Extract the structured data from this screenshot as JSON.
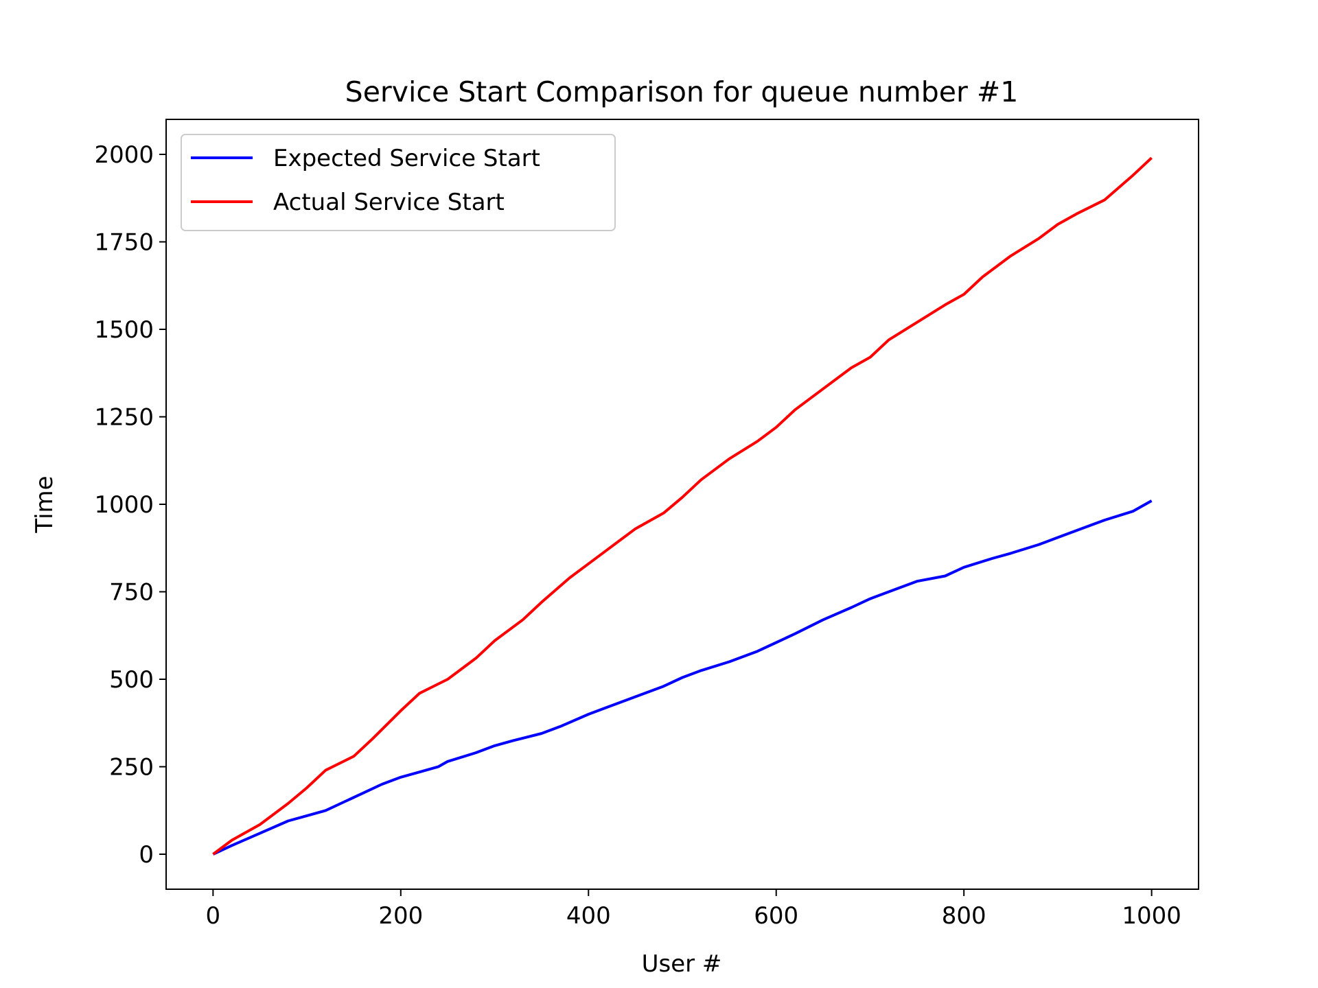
{
  "chart_data": {
    "type": "line",
    "title": "Service Start Comparison for queue number #1",
    "xlabel": "User #",
    "ylabel": "Time",
    "xlim": [
      -50,
      1050
    ],
    "ylim": [
      -100,
      2100
    ],
    "xticks": [
      0,
      200,
      400,
      600,
      800,
      1000
    ],
    "yticks": [
      0,
      250,
      500,
      750,
      1000,
      1250,
      1500,
      1750,
      2000
    ],
    "grid": false,
    "legend_position": "upper-left",
    "series": [
      {
        "name": "Expected Service Start",
        "color": "#0000ff",
        "x": [
          0,
          20,
          50,
          80,
          100,
          120,
          140,
          160,
          180,
          200,
          220,
          240,
          250,
          280,
          300,
          320,
          350,
          370,
          400,
          420,
          450,
          480,
          500,
          520,
          550,
          580,
          600,
          620,
          650,
          680,
          700,
          730,
          750,
          780,
          800,
          830,
          850,
          880,
          900,
          930,
          950,
          980,
          1000
        ],
        "y": [
          0,
          25,
          60,
          95,
          110,
          125,
          150,
          175,
          200,
          220,
          235,
          250,
          265,
          290,
          310,
          325,
          345,
          365,
          400,
          420,
          450,
          480,
          505,
          525,
          550,
          580,
          605,
          630,
          670,
          705,
          730,
          760,
          780,
          795,
          820,
          845,
          860,
          885,
          905,
          935,
          955,
          980,
          1010
        ]
      },
      {
        "name": "Actual Service Start",
        "color": "#ff0000",
        "x": [
          0,
          20,
          50,
          80,
          100,
          120,
          150,
          170,
          200,
          220,
          250,
          280,
          300,
          330,
          350,
          380,
          400,
          420,
          450,
          480,
          500,
          520,
          550,
          580,
          600,
          620,
          650,
          680,
          700,
          720,
          750,
          780,
          800,
          820,
          850,
          880,
          900,
          920,
          950,
          980,
          1000
        ],
        "y": [
          0,
          40,
          85,
          145,
          190,
          240,
          280,
          330,
          410,
          460,
          500,
          560,
          610,
          670,
          720,
          790,
          830,
          870,
          930,
          975,
          1020,
          1070,
          1130,
          1180,
          1220,
          1270,
          1330,
          1390,
          1420,
          1470,
          1520,
          1570,
          1600,
          1650,
          1710,
          1760,
          1800,
          1830,
          1870,
          1940,
          1990
        ]
      }
    ]
  }
}
